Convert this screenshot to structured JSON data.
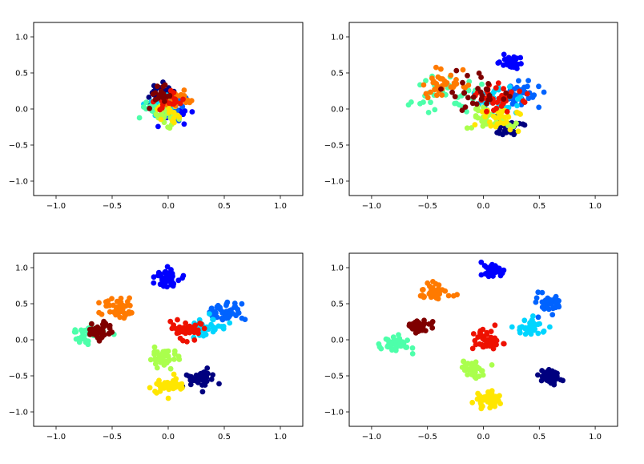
{
  "colors": {
    "cluster_0": "#00007f",
    "cluster_1": "#0000ff",
    "cluster_2": "#0063ff",
    "cluster_3": "#00d5ff",
    "cluster_4": "#4dffaa",
    "cluster_5": "#aaff4d",
    "cluster_6": "#ffe600",
    "cluster_7": "#ff7a00",
    "cluster_8": "#ee1100",
    "cluster_9": "#7f0000"
  },
  "chart_data": [
    {
      "type": "scatter",
      "panel": "top-left",
      "xlim": [
        -1.2,
        1.2
      ],
      "ylim": [
        -1.2,
        1.2
      ],
      "xticks": [
        "−1.0",
        "−0.5",
        "0.0",
        "0.5",
        "1.0"
      ],
      "yticks": [
        "1.0",
        "0.5",
        "0.0",
        "−0.5",
        "−1.0"
      ],
      "xtick_values": [
        -1.0,
        -0.5,
        0.0,
        0.5,
        1.0
      ],
      "ytick_values": [
        1.0,
        0.5,
        0.0,
        -0.5,
        -1.0
      ],
      "grid": false,
      "series": [
        {
          "color": "cluster_0",
          "center": [
            -0.08,
            0.2
          ],
          "spread": 0.07,
          "count": 30
        },
        {
          "color": "cluster_1",
          "center": [
            0.05,
            -0.05
          ],
          "spread": 0.07,
          "count": 30
        },
        {
          "color": "cluster_2",
          "center": [
            0.05,
            0.05
          ],
          "spread": 0.08,
          "count": 30
        },
        {
          "color": "cluster_3",
          "center": [
            -0.05,
            0.05
          ],
          "spread": 0.07,
          "count": 20
        },
        {
          "color": "cluster_4",
          "center": [
            -0.1,
            0.0
          ],
          "spread": 0.06,
          "count": 20
        },
        {
          "color": "cluster_5",
          "center": [
            -0.02,
            -0.1
          ],
          "spread": 0.06,
          "count": 20
        },
        {
          "color": "cluster_6",
          "center": [
            0.0,
            0.0
          ],
          "spread": 0.06,
          "count": 15
        },
        {
          "color": "cluster_7",
          "center": [
            0.08,
            0.12
          ],
          "spread": 0.06,
          "count": 20
        },
        {
          "color": "cluster_8",
          "center": [
            0.0,
            0.1
          ],
          "spread": 0.06,
          "count": 20
        },
        {
          "color": "cluster_9",
          "center": [
            -0.05,
            0.18
          ],
          "spread": 0.06,
          "count": 20
        }
      ]
    },
    {
      "type": "scatter",
      "panel": "top-right",
      "xlim": [
        -1.2,
        1.2
      ],
      "ylim": [
        -1.2,
        1.2
      ],
      "xticks": [
        "−1.0",
        "−0.5",
        "0.0",
        "0.5",
        "1.0"
      ],
      "yticks": [
        "1.0",
        "0.5",
        "0.0",
        "−0.5",
        "−1.0"
      ],
      "xtick_values": [
        -1.0,
        -0.5,
        0.0,
        0.5,
        1.0
      ],
      "ytick_values": [
        1.0,
        0.5,
        0.0,
        -0.5,
        -1.0
      ],
      "grid": false,
      "series": [
        {
          "color": "cluster_0",
          "center": [
            0.22,
            -0.25
          ],
          "spread": 0.08,
          "count": 30
        },
        {
          "color": "cluster_1",
          "center": [
            0.25,
            0.65
          ],
          "spread": 0.05,
          "count": 40
        },
        {
          "color": "cluster_2",
          "center": [
            0.35,
            0.18
          ],
          "spread": 0.08,
          "count": 40
        },
        {
          "color": "cluster_3",
          "center": [
            0.15,
            0.1
          ],
          "spread": 0.1,
          "count": 30
        },
        {
          "color": "cluster_4",
          "center": [
            -0.3,
            0.2
          ],
          "spread": 0.15,
          "count": 35
        },
        {
          "color": "cluster_5",
          "center": [
            0.05,
            -0.15
          ],
          "spread": 0.1,
          "count": 30
        },
        {
          "color": "cluster_6",
          "center": [
            0.15,
            -0.1
          ],
          "spread": 0.1,
          "count": 30
        },
        {
          "color": "cluster_7",
          "center": [
            -0.35,
            0.35
          ],
          "spread": 0.1,
          "count": 35
        },
        {
          "color": "cluster_8",
          "center": [
            0.15,
            0.15
          ],
          "spread": 0.1,
          "count": 35
        },
        {
          "color": "cluster_9",
          "center": [
            -0.05,
            0.2
          ],
          "spread": 0.15,
          "count": 30
        }
      ]
    },
    {
      "type": "scatter",
      "panel": "bottom-left",
      "xlim": [
        -1.2,
        1.2
      ],
      "ylim": [
        -1.2,
        1.2
      ],
      "xticks": [
        "−1.0",
        "−0.5",
        "0.0",
        "0.5",
        "1.0"
      ],
      "yticks": [
        "1.0",
        "0.5",
        "0.0",
        "−0.5",
        "−1.0"
      ],
      "xtick_values": [
        -1.0,
        -0.5,
        0.0,
        0.5,
        1.0
      ],
      "ytick_values": [
        1.0,
        0.5,
        0.0,
        -0.5,
        -1.0
      ],
      "grid": false,
      "series": [
        {
          "color": "cluster_0",
          "center": [
            0.28,
            -0.55
          ],
          "spread": 0.06,
          "count": 40
        },
        {
          "color": "cluster_1",
          "center": [
            -0.02,
            0.85
          ],
          "spread": 0.06,
          "count": 45
        },
        {
          "color": "cluster_2",
          "center": [
            0.5,
            0.38
          ],
          "spread": 0.07,
          "count": 45
        },
        {
          "color": "cluster_3",
          "center": [
            0.35,
            0.15
          ],
          "spread": 0.07,
          "count": 35
        },
        {
          "color": "cluster_4",
          "center": [
            -0.72,
            0.1
          ],
          "spread": 0.08,
          "count": 45
        },
        {
          "color": "cluster_5",
          "center": [
            -0.05,
            -0.25
          ],
          "spread": 0.07,
          "count": 40
        },
        {
          "color": "cluster_6",
          "center": [
            0.0,
            -0.65
          ],
          "spread": 0.07,
          "count": 45
        },
        {
          "color": "cluster_7",
          "center": [
            -0.45,
            0.42
          ],
          "spread": 0.08,
          "count": 45
        },
        {
          "color": "cluster_8",
          "center": [
            0.15,
            0.15
          ],
          "spread": 0.08,
          "count": 45
        },
        {
          "color": "cluster_9",
          "center": [
            -0.6,
            0.12
          ],
          "spread": 0.06,
          "count": 35
        }
      ]
    },
    {
      "type": "scatter",
      "panel": "bottom-right",
      "xlim": [
        -1.2,
        1.2
      ],
      "ylim": [
        -1.2,
        1.2
      ],
      "xticks": [
        "−1.0",
        "−0.5",
        "0.0",
        "0.5",
        "1.0"
      ],
      "yticks": [
        "1.0",
        "0.5",
        "0.0",
        "−0.5",
        "−1.0"
      ],
      "xtick_values": [
        -1.0,
        -0.5,
        0.0,
        0.5,
        1.0
      ],
      "ytick_values": [
        1.0,
        0.5,
        0.0,
        -0.5,
        -1.0
      ],
      "grid": false,
      "series": [
        {
          "color": "cluster_0",
          "center": [
            0.6,
            -0.52
          ],
          "spread": 0.05,
          "count": 40
        },
        {
          "color": "cluster_1",
          "center": [
            0.08,
            0.95
          ],
          "spread": 0.05,
          "count": 45
        },
        {
          "color": "cluster_2",
          "center": [
            0.6,
            0.5
          ],
          "spread": 0.06,
          "count": 45
        },
        {
          "color": "cluster_3",
          "center": [
            0.42,
            0.18
          ],
          "spread": 0.06,
          "count": 40
        },
        {
          "color": "cluster_4",
          "center": [
            -0.78,
            -0.05
          ],
          "spread": 0.06,
          "count": 45
        },
        {
          "color": "cluster_5",
          "center": [
            -0.1,
            -0.4
          ],
          "spread": 0.06,
          "count": 40
        },
        {
          "color": "cluster_6",
          "center": [
            0.05,
            -0.82
          ],
          "spread": 0.06,
          "count": 45
        },
        {
          "color": "cluster_7",
          "center": [
            -0.45,
            0.65
          ],
          "spread": 0.06,
          "count": 45
        },
        {
          "color": "cluster_8",
          "center": [
            0.05,
            0.0
          ],
          "spread": 0.07,
          "count": 45
        },
        {
          "color": "cluster_9",
          "center": [
            -0.58,
            0.18
          ],
          "spread": 0.05,
          "count": 35
        }
      ]
    }
  ]
}
